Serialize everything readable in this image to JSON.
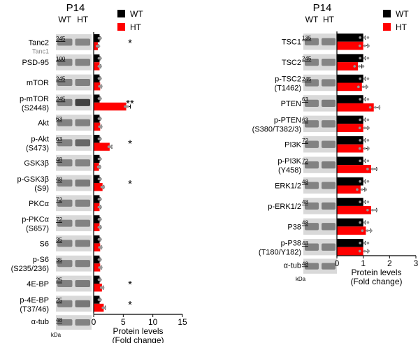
{
  "colors": {
    "wt": "#000000",
    "ht": "#ff0000",
    "dot": "#999999",
    "blot_bg": "#d9d9d9",
    "band": "#3a3a3a"
  },
  "chart_data": [
    {
      "type": "bar",
      "orientation": "horizontal",
      "title": "P14",
      "lane_labels": [
        "WT",
        "HT"
      ],
      "legend": [
        "WT",
        "HT"
      ],
      "legend_position": "top-right",
      "xlabel": "Protein levels",
      "xlabel_sub": "(Fold change)",
      "xlim": [
        0,
        15
      ],
      "xticks": [
        "0",
        "5",
        "10",
        "15"
      ],
      "kda_label": "kDa",
      "categories": [
        "Tanc2",
        "PSD-95",
        "mTOR",
        "p-mTOR (S2448)",
        "Akt",
        "p-Akt (S473)",
        "GSK3β",
        "p-GSK3β (S9)",
        "PKCα",
        "p-PKCα (S657)",
        "S6",
        "p-S6 (S235/236)",
        "4E-BP",
        "p-4E-BP (T37/46)",
        "α-tub"
      ],
      "rows": [
        {
          "label": [
            "Tanc2"
          ],
          "sub": "Tanc1",
          "kda": "245",
          "wt": 1,
          "ht": 0.7,
          "sig": "*"
        },
        {
          "label": [
            "PSD-95"
          ],
          "kda": "100",
          "wt": 1,
          "ht": 1.0,
          "sig": ""
        },
        {
          "label": [
            "mTOR"
          ],
          "kda": "245",
          "wt": 1,
          "ht": 1.1,
          "sig": ""
        },
        {
          "label": [
            "p-mTOR",
            "(S2448)"
          ],
          "kda": "245",
          "wt": 1,
          "ht": 5.5,
          "sig": "**"
        },
        {
          "label": [
            "Akt"
          ],
          "kda": "63",
          "wt": 1,
          "ht": 1.1,
          "sig": ""
        },
        {
          "label": [
            "p-Akt",
            "(S473)"
          ],
          "kda": "63",
          "wt": 1,
          "ht": 2.7,
          "sig": "*"
        },
        {
          "label": [
            "GSK3β"
          ],
          "kda": "48",
          "wt": 1,
          "ht": 0.9,
          "sig": ""
        },
        {
          "label": [
            "p-GSK3β",
            "(S9)"
          ],
          "kda": "48",
          "wt": 1,
          "ht": 1.5,
          "sig": "*"
        },
        {
          "label": [
            "PKCα"
          ],
          "kda": "72",
          "wt": 1,
          "ht": 1.0,
          "sig": ""
        },
        {
          "label": [
            "p-PKCα",
            "(S657)"
          ],
          "kda": "72",
          "wt": 1,
          "ht": 1.0,
          "sig": ""
        },
        {
          "label": [
            "S6"
          ],
          "kda": "35",
          "wt": 1,
          "ht": 1.1,
          "sig": ""
        },
        {
          "label": [
            "p-S6",
            "(S235/236)"
          ],
          "kda": "35",
          "wt": 1,
          "ht": 1.1,
          "sig": ""
        },
        {
          "label": [
            "4E-BP"
          ],
          "kda": "25",
          "wt": 1,
          "ht": 1.4,
          "sig": "*"
        },
        {
          "label": [
            "p-4E-BP",
            "(T37/46)"
          ],
          "kda": "25",
          "wt": 1,
          "ht": 1.7,
          "sig": "*"
        }
      ],
      "loading_control": {
        "label": "α-tub",
        "kda": "48"
      }
    },
    {
      "type": "bar",
      "orientation": "horizontal",
      "title": "P14",
      "lane_labels": [
        "WT",
        "HT"
      ],
      "legend": [
        "WT",
        "HT"
      ],
      "legend_position": "top-right",
      "xlabel": "Protein levels",
      "xlabel_sub": "(Fold change)",
      "xlim": [
        0,
        3
      ],
      "xticks": [
        "0",
        "1",
        "2",
        "3"
      ],
      "kda_label": "kDa",
      "categories": [
        "TSC1",
        "TSC2",
        "p-TSC2 (T1462)",
        "PTEN",
        "p-PTEN (S380/T382/3)",
        "PI3K",
        "p-PI3K (Y458)",
        "ERK1/2",
        "p-ERK1/2",
        "P38",
        "p-P38 (T180/Y182)",
        "α-tub"
      ],
      "rows": [
        {
          "label": [
            "TSC1"
          ],
          "kda": "135",
          "wt": 1,
          "ht": 1.0,
          "sig": ""
        },
        {
          "label": [
            "TSC2"
          ],
          "kda": "245",
          "wt": 1,
          "ht": 0.8,
          "sig": ""
        },
        {
          "label": [
            "p-TSC2",
            "(T1462)"
          ],
          "kda": "245",
          "wt": 1,
          "ht": 0.95,
          "sig": ""
        },
        {
          "label": [
            "PTEN"
          ],
          "kda": "63",
          "wt": 1,
          "ht": 1.4,
          "sig": ""
        },
        {
          "label": [
            "p-PTEN",
            "(S380/T382/3)"
          ],
          "kda": "63",
          "wt": 1,
          "ht": 1.0,
          "sig": ""
        },
        {
          "label": [
            "PI3K"
          ],
          "kda": "72",
          "wt": 1,
          "ht": 1.0,
          "sig": ""
        },
        {
          "label": [
            "p-PI3K",
            "(Y458)"
          ],
          "kda": "72",
          "wt": 1,
          "ht": 1.3,
          "sig": ""
        },
        {
          "label": [
            "ERK1/2"
          ],
          "kda": "48",
          "wt": 1,
          "ht": 0.9,
          "sig": ""
        },
        {
          "label": [
            "p-ERK1/2"
          ],
          "kda": "48",
          "wt": 1,
          "ht": 1.3,
          "sig": ""
        },
        {
          "label": [
            "P38"
          ],
          "kda": "48",
          "wt": 1,
          "ht": 1.1,
          "sig": ""
        },
        {
          "label": [
            "p-P38",
            "(T180/Y182)"
          ],
          "kda": "48",
          "wt": 1,
          "ht": 1.0,
          "sig": ""
        }
      ],
      "loading_control": {
        "label": "α-tub",
        "kda": "48"
      }
    }
  ]
}
